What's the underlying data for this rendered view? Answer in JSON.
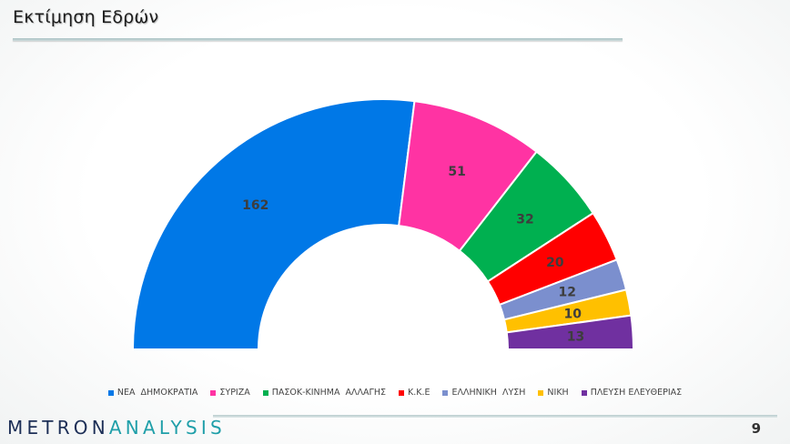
{
  "page": {
    "title": "Εκτίμηση Εδρών",
    "page_number": "9"
  },
  "logo": {
    "part1": "METRON",
    "part2": "ANALYSIS"
  },
  "chart_data": {
    "type": "pie",
    "subtype": "semicircle-donut",
    "title": "",
    "categories": [
      "ΝΕΑ ΔΗΜΟΚΡΑΤΙΑ",
      "ΣΥΡΙΖΑ",
      "ΠΑΣΟΚ-ΚΙΝΗΜΑ ΑΛΛΑΓΗΣ",
      "Κ.Κ.Ε",
      "ΕΛΛΗΝΙΚΗ ΛΥΣΗ",
      "ΝΙΚΗ",
      "ΠΛΕΥΣΗ ΕΛΕΥΘΕΡΙΑΣ"
    ],
    "legend_labels": [
      "ΝΕΑ  ΔΗΜΟΚΡΑΤΙΑ",
      "ΣΥΡΙΖΑ",
      "ΠΑΣΟΚ-ΚΙΝΗΜΑ  ΑΛΛΑΓΗΣ",
      "Κ.Κ.Ε",
      "ΕΛΛΗΝΙΚΗ  ΛΥΣΗ",
      "ΝΙΚΗ",
      "ΠΛΕΥΣΗ ΕΛΕΥΘΕΡΙΑΣ"
    ],
    "values": [
      162,
      51,
      32,
      20,
      12,
      10,
      13
    ],
    "colors": [
      "#0078e7",
      "#ff33a3",
      "#00b050",
      "#ff0000",
      "#7b8fce",
      "#ffc000",
      "#7030a0"
    ],
    "legend_position": "bottom",
    "data_labels": true
  }
}
